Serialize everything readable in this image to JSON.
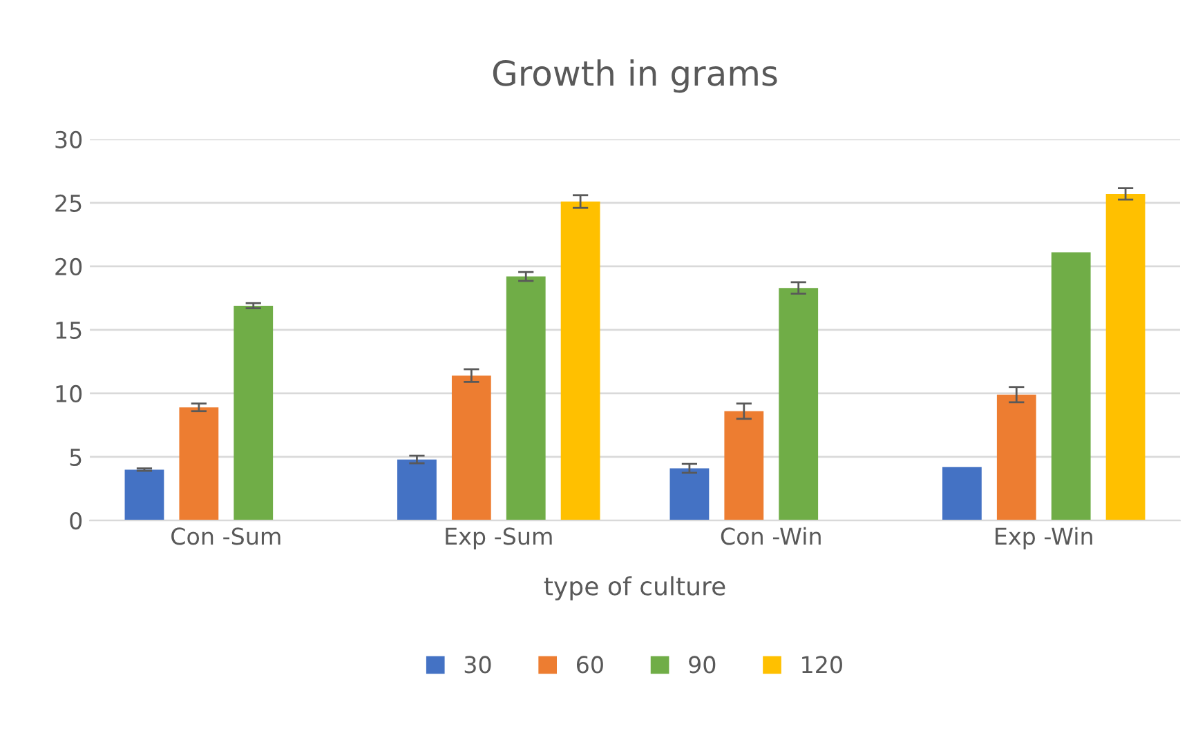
{
  "chart_data": {
    "type": "bar",
    "title": "Growth in grams",
    "xlabel": "type of culture",
    "categories": [
      "Con -Sum",
      "Exp -Sum",
      "Con -Win",
      "Exp -Win"
    ],
    "series": [
      {
        "name": "30",
        "color": "#4472c4",
        "values": [
          4.0,
          4.8,
          4.1,
          4.2
        ],
        "errors": [
          0.1,
          0.3,
          0.35,
          null
        ]
      },
      {
        "name": "60",
        "color": "#ed7d31",
        "values": [
          8.9,
          11.4,
          8.6,
          9.9
        ],
        "errors": [
          0.3,
          0.5,
          0.6,
          0.6
        ]
      },
      {
        "name": "90",
        "color": "#70ad47",
        "values": [
          16.9,
          19.2,
          18.3,
          21.1
        ],
        "errors": [
          0.2,
          0.35,
          0.45,
          null
        ]
      },
      {
        "name": "120",
        "color": "#ffc000",
        "values": [
          null,
          25.1,
          null,
          25.7
        ],
        "errors": [
          null,
          0.5,
          null,
          0.45
        ]
      }
    ],
    "ylim": [
      0,
      30
    ],
    "yticks": [
      0,
      5,
      10,
      15,
      20,
      25,
      30
    ],
    "grid": "y",
    "legend": "bottom"
  }
}
